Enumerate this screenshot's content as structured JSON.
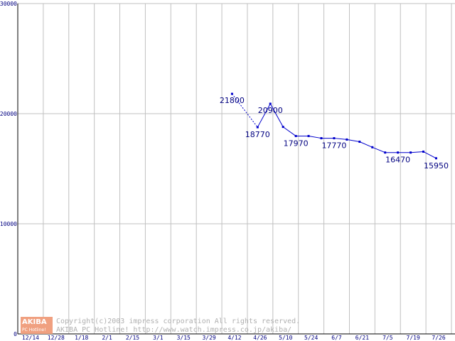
{
  "chart_data": {
    "type": "line",
    "categories": [
      "12/14",
      "12/28",
      "1/18",
      "2/1",
      "2/15",
      "3/1",
      "3/15",
      "3/29",
      "4/12",
      "4/26",
      "5/10",
      "5/24",
      "6/7",
      "6/21",
      "7/5",
      "7/19",
      "7/26"
    ],
    "y_ticks": [
      "30000",
      "20000",
      "10000",
      "0"
    ],
    "ylim": [
      0,
      30000
    ],
    "grid": true,
    "series": [
      {
        "color": "#0000cc",
        "points": [
          {
            "x": 8.4,
            "y": 21800,
            "label": "21800"
          },
          {
            "x": 9.4,
            "y": 18770,
            "label": "18770"
          },
          {
            "x": 9.9,
            "y": 20900,
            "label": "20900"
          },
          {
            "x": 10.4,
            "y": 18800
          },
          {
            "x": 10.9,
            "y": 17970,
            "label": "17970"
          },
          {
            "x": 11.4,
            "y": 17970
          },
          {
            "x": 11.9,
            "y": 17770
          },
          {
            "x": 12.4,
            "y": 17770,
            "label": "17770"
          },
          {
            "x": 12.9,
            "y": 17650
          },
          {
            "x": 13.4,
            "y": 17450
          },
          {
            "x": 13.9,
            "y": 16950
          },
          {
            "x": 14.4,
            "y": 16470
          },
          {
            "x": 14.9,
            "y": 16470,
            "label": "16470"
          },
          {
            "x": 15.4,
            "y": 16470
          },
          {
            "x": 15.9,
            "y": 16550
          },
          {
            "x": 16.4,
            "y": 15950,
            "label": "15950"
          }
        ]
      }
    ]
  },
  "watermark": {
    "logo_top": "AKIBA",
    "logo_bottom": "PC Hotline!",
    "line1": "Copyright(c)2003 impress corporation All rights reserved.",
    "line2": "AKIBA PC Hotline!  http://www.watch.impress.co.jp/akiba/"
  },
  "colors": {
    "line": "#0000cc",
    "grid": "#c0c0c0",
    "axis": "#000000",
    "tick_text": "#000080",
    "logo_bg": "#f0a080"
  }
}
